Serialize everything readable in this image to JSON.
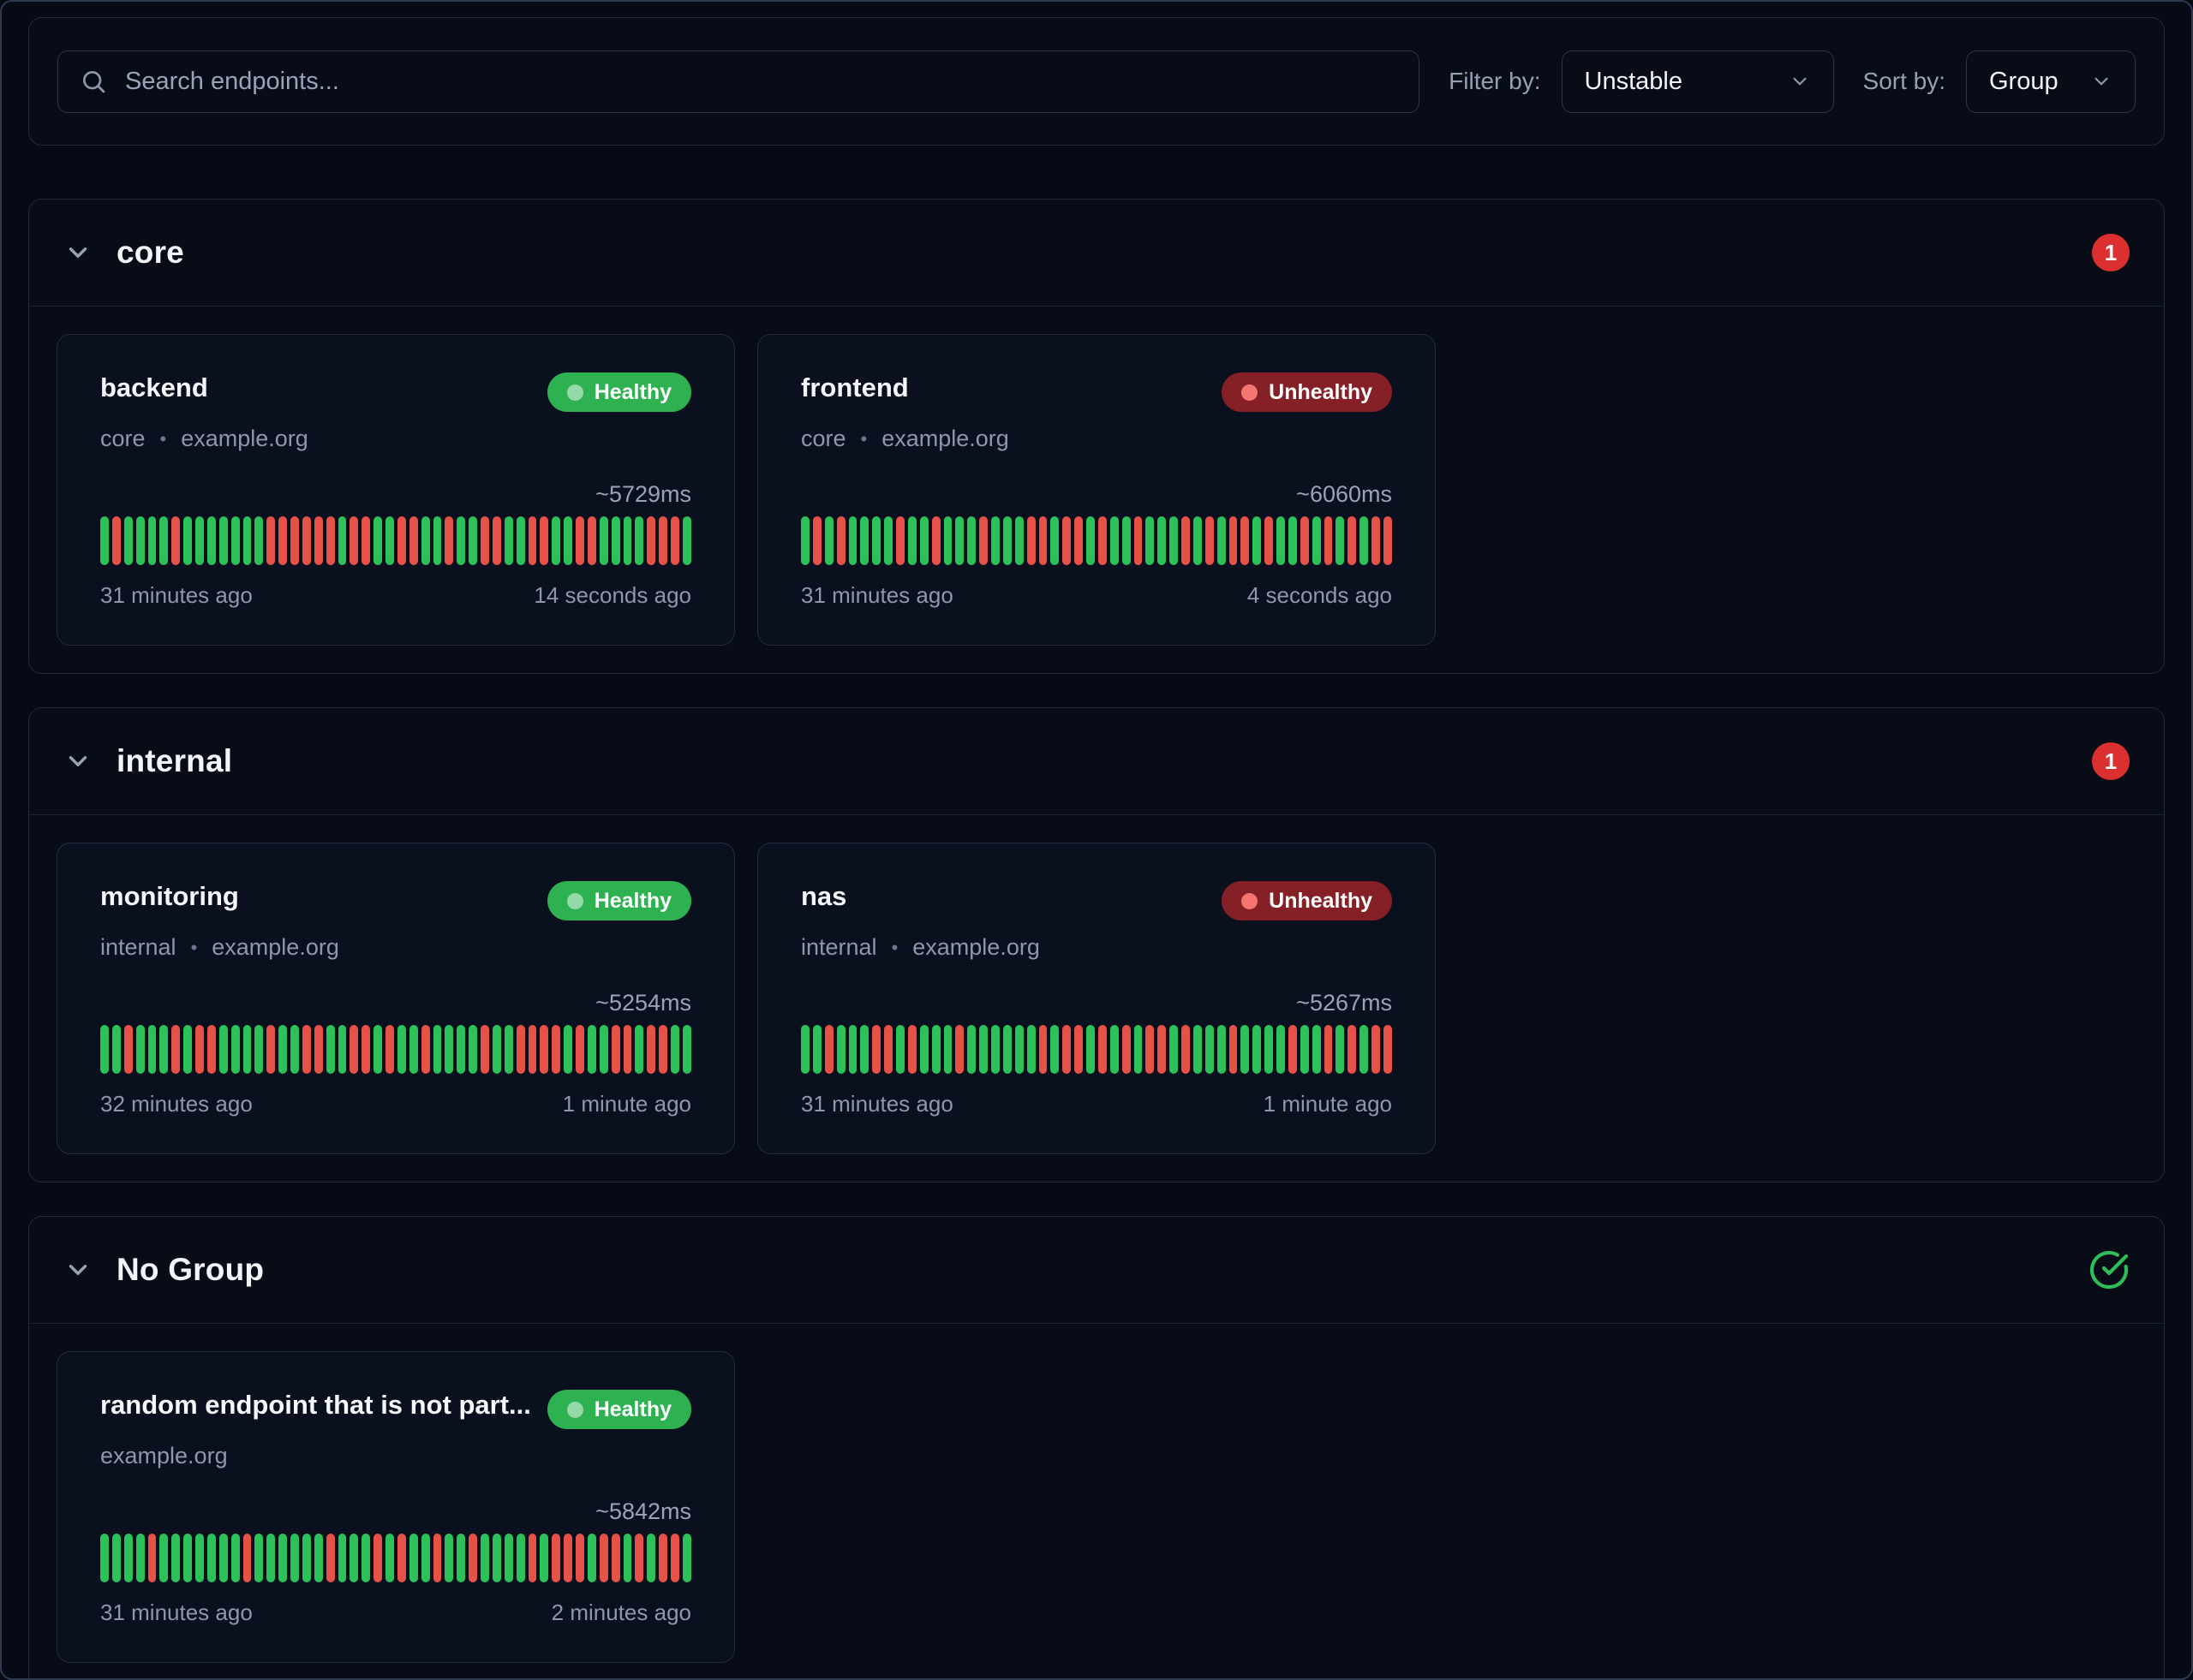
{
  "toolbar": {
    "search_placeholder": "Search endpoints...",
    "filter_label": "Filter by:",
    "filter_value": "Unstable",
    "sort_label": "Sort by:",
    "sort_value": "Group"
  },
  "colors": {
    "page_bg": "#060a14",
    "panel_bg": "#070c17",
    "card_bg": "#0a101d",
    "border": "#212a3d",
    "healthy_bar": "#2cc159",
    "unhealthy_bar": "#e75248",
    "healthy_badge_bg": "#2eb151",
    "healthy_badge_dot": "#96d9a8",
    "unhealthy_badge_bg": "#852026",
    "unhealthy_badge_dot": "#f5766f",
    "count_badge_bg": "#dc2f2f",
    "check_icon": "#2dbe57"
  },
  "sections": [
    {
      "title": "core",
      "badge": {
        "type": "count",
        "value": "1"
      },
      "endpoints": [
        {
          "name": "backend",
          "status": "Healthy",
          "group": "core",
          "host": "example.org",
          "response_time": "~5729ms",
          "history": "GRGGGGRGGGGGGGRRRRRRGRRGGRRGGRGGRRGGRRGGRRGGGGRRRG",
          "oldest": "31 minutes ago",
          "latest": "14 seconds ago"
        },
        {
          "name": "frontend",
          "status": "Unhealthy",
          "group": "core",
          "host": "example.org",
          "response_time": "~6060ms",
          "history": "GRGRGGGGRGGRGGGRGGGRRGRRGRGGRGGGRGRGRRGRGGRGRGRGRR",
          "oldest": "31 minutes ago",
          "latest": "4 seconds ago"
        }
      ]
    },
    {
      "title": "internal",
      "badge": {
        "type": "count",
        "value": "1"
      },
      "endpoints": [
        {
          "name": "monitoring",
          "status": "Healthy",
          "group": "internal",
          "host": "example.org",
          "response_time": "~5254ms",
          "history": "GGRGGGRGRRGGGGRGGRRGGRRGRGGRGGGGRGGRRRRGRGGRRGRRGG",
          "oldest": "32 minutes ago",
          "latest": "1 minute ago"
        },
        {
          "name": "nas",
          "status": "Unhealthy",
          "group": "internal",
          "host": "example.org",
          "response_time": "~5267ms",
          "history": "GGRGGGRRGRGGGRGGGGGGRGRRGRGRGRRGRGGGRGGGGRGGRGRGRR",
          "oldest": "31 minutes ago",
          "latest": "1 minute ago"
        }
      ]
    },
    {
      "title": "No Group",
      "badge": {
        "type": "check"
      },
      "endpoints": [
        {
          "name": "random endpoint that is not part...",
          "status": "Healthy",
          "group": "",
          "host": "example.org",
          "response_time": "~5842ms",
          "history": "GGGGRGGGGGGGRGGGGGGRGGGRGRGGRGGRGGGGRGRRRGRRGRGRRG",
          "oldest": "31 minutes ago",
          "latest": "2 minutes ago"
        }
      ]
    }
  ]
}
